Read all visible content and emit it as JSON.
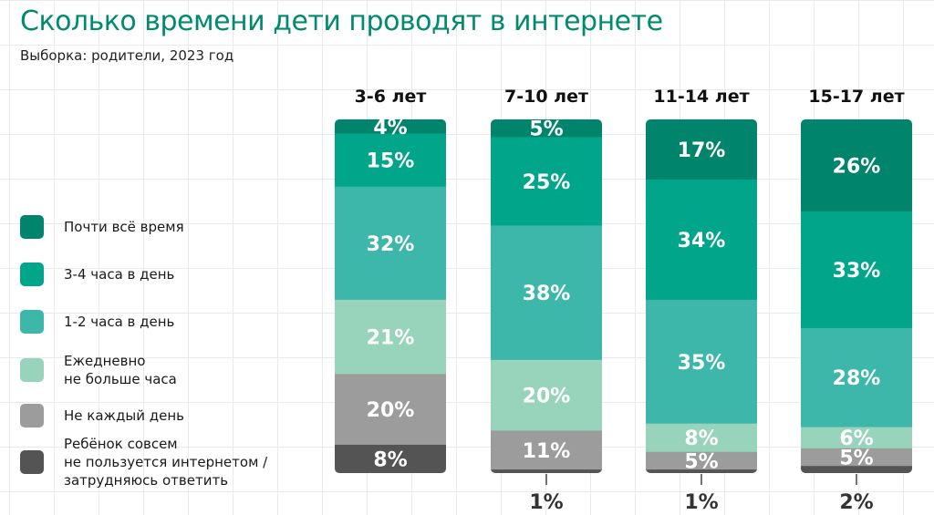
{
  "title": "Сколько времени дети проводят в интернете",
  "subtitle": "Выборка: родители, 2023 год",
  "chart_data": {
    "type": "bar",
    "stacked": true,
    "grid": false,
    "legend_position": "left",
    "categories": [
      "3-6 лет",
      "7-10 лет",
      "11-14 лет",
      "15-17 лет"
    ],
    "series": [
      {
        "name": "Почти всё время",
        "color": "#00856c",
        "values": [
          4,
          5,
          17,
          26
        ],
        "labels": [
          "4%",
          "5%",
          "17%",
          "26%"
        ]
      },
      {
        "name": "3-4 часа в день",
        "color": "#00a58a",
        "values": [
          15,
          25,
          34,
          33
        ],
        "labels": [
          "15%",
          "25%",
          "34%",
          "33%"
        ]
      },
      {
        "name": "1-2 часа в день",
        "color": "#3db7aa",
        "values": [
          32,
          38,
          35,
          28
        ],
        "labels": [
          "32%",
          "38%",
          "35%",
          "28%"
        ]
      },
      {
        "name": "Ежедневно\nне больше часа",
        "color": "#97d4bb",
        "values": [
          21,
          20,
          8,
          6
        ],
        "labels": [
          "21%",
          "20%",
          "8%",
          "6%"
        ]
      },
      {
        "name": "Не каждый день",
        "color": "#9c9c9c",
        "values": [
          20,
          11,
          5,
          5
        ],
        "labels": [
          "20%",
          "11%",
          "5%",
          "5%"
        ]
      },
      {
        "name": "Ребёнок совсем\nне пользуется интернетом /\nзатрудняюсь ответить",
        "color": "#545454",
        "values": [
          8,
          1,
          1,
          2
        ],
        "labels": [
          "8%",
          "1%",
          "1%",
          "2%"
        ]
      }
    ]
  }
}
